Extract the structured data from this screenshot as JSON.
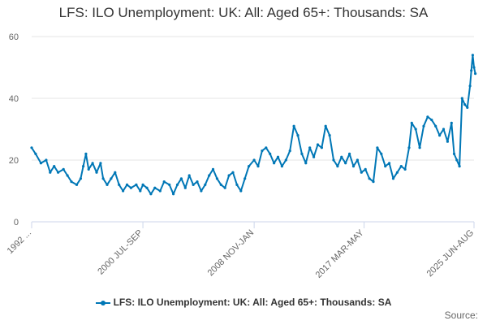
{
  "chart_data": {
    "type": "line",
    "title": "LFS: ILO Unemployment: UK: All: Aged 65+: Thousands: SA",
    "xlabel": "",
    "ylabel": "",
    "x_tick_labels": [
      "1992 ...",
      "2000 JUL-SEP",
      "2008 NOV-JAN",
      "2017 MAR-MAY",
      "2025 JUN-AUG"
    ],
    "x_tick_years": [
      1992.1,
      2000.5,
      2008.9,
      2017.2,
      2025.5
    ],
    "y_ticks": [
      0,
      20,
      40,
      60
    ],
    "ylim": [
      0,
      60
    ],
    "grid": true,
    "legend_position": "bottom",
    "series": [
      {
        "name": "LFS: ILO Unemployment: UK: All: Aged 65+: Thousands: SA",
        "color": "#0077b6",
        "points": [
          [
            1992.1,
            24
          ],
          [
            1992.4,
            22
          ],
          [
            1992.8,
            19
          ],
          [
            1993.2,
            20
          ],
          [
            1993.5,
            16
          ],
          [
            1993.8,
            18
          ],
          [
            1994.1,
            16
          ],
          [
            1994.5,
            17
          ],
          [
            1994.8,
            15
          ],
          [
            1995.1,
            13
          ],
          [
            1995.5,
            12
          ],
          [
            1995.8,
            14
          ],
          [
            1996.0,
            18
          ],
          [
            1996.2,
            22
          ],
          [
            1996.4,
            17
          ],
          [
            1996.7,
            19
          ],
          [
            1997.0,
            16
          ],
          [
            1997.3,
            19
          ],
          [
            1997.5,
            14
          ],
          [
            1997.8,
            12
          ],
          [
            1998.1,
            14
          ],
          [
            1998.4,
            16
          ],
          [
            1998.7,
            12
          ],
          [
            1999.0,
            10
          ],
          [
            1999.3,
            12
          ],
          [
            1999.6,
            11
          ],
          [
            2000.0,
            12
          ],
          [
            2000.3,
            10
          ],
          [
            2000.5,
            12
          ],
          [
            2000.8,
            11
          ],
          [
            2001.1,
            9
          ],
          [
            2001.4,
            11
          ],
          [
            2001.8,
            10
          ],
          [
            2002.1,
            13
          ],
          [
            2002.5,
            12
          ],
          [
            2002.8,
            9
          ],
          [
            2003.1,
            12
          ],
          [
            2003.4,
            14
          ],
          [
            2003.7,
            11
          ],
          [
            2004.0,
            15
          ],
          [
            2004.3,
            12
          ],
          [
            2004.6,
            13
          ],
          [
            2004.9,
            10
          ],
          [
            2005.2,
            12
          ],
          [
            2005.5,
            15
          ],
          [
            2005.8,
            17
          ],
          [
            2006.1,
            14
          ],
          [
            2006.4,
            12
          ],
          [
            2006.7,
            11
          ],
          [
            2007.0,
            15
          ],
          [
            2007.3,
            16
          ],
          [
            2007.6,
            12
          ],
          [
            2007.9,
            10
          ],
          [
            2008.2,
            14
          ],
          [
            2008.5,
            18
          ],
          [
            2008.9,
            20
          ],
          [
            2009.2,
            18
          ],
          [
            2009.5,
            23
          ],
          [
            2009.8,
            24
          ],
          [
            2010.1,
            22
          ],
          [
            2010.4,
            19
          ],
          [
            2010.7,
            21
          ],
          [
            2011.0,
            18
          ],
          [
            2011.3,
            20
          ],
          [
            2011.6,
            23
          ],
          [
            2011.9,
            31
          ],
          [
            2012.2,
            28
          ],
          [
            2012.5,
            22
          ],
          [
            2012.8,
            19
          ],
          [
            2013.1,
            24
          ],
          [
            2013.4,
            21
          ],
          [
            2013.7,
            25
          ],
          [
            2014.0,
            24
          ],
          [
            2014.3,
            31
          ],
          [
            2014.6,
            28
          ],
          [
            2014.9,
            20
          ],
          [
            2015.2,
            18
          ],
          [
            2015.5,
            21
          ],
          [
            2015.8,
            19
          ],
          [
            2016.1,
            22
          ],
          [
            2016.4,
            18
          ],
          [
            2016.7,
            20
          ],
          [
            2017.0,
            16
          ],
          [
            2017.3,
            17
          ],
          [
            2017.6,
            14
          ],
          [
            2017.9,
            13
          ],
          [
            2018.2,
            24
          ],
          [
            2018.5,
            22
          ],
          [
            2018.8,
            18
          ],
          [
            2019.1,
            19
          ],
          [
            2019.4,
            14
          ],
          [
            2019.7,
            16
          ],
          [
            2020.0,
            18
          ],
          [
            2020.3,
            17
          ],
          [
            2020.6,
            24
          ],
          [
            2020.8,
            32
          ],
          [
            2021.1,
            30
          ],
          [
            2021.4,
            24
          ],
          [
            2021.7,
            31
          ],
          [
            2022.0,
            34
          ],
          [
            2022.3,
            33
          ],
          [
            2022.6,
            31
          ],
          [
            2022.9,
            28
          ],
          [
            2023.2,
            30
          ],
          [
            2023.5,
            26
          ],
          [
            2023.8,
            32
          ],
          [
            2024.0,
            22
          ],
          [
            2024.2,
            20
          ],
          [
            2024.4,
            18
          ],
          [
            2024.6,
            40
          ],
          [
            2024.8,
            38
          ],
          [
            2025.0,
            37
          ],
          [
            2025.2,
            44
          ],
          [
            2025.3,
            49
          ],
          [
            2025.4,
            54
          ],
          [
            2025.5,
            50
          ],
          [
            2025.6,
            48
          ]
        ]
      }
    ],
    "source_text": "Source:"
  }
}
